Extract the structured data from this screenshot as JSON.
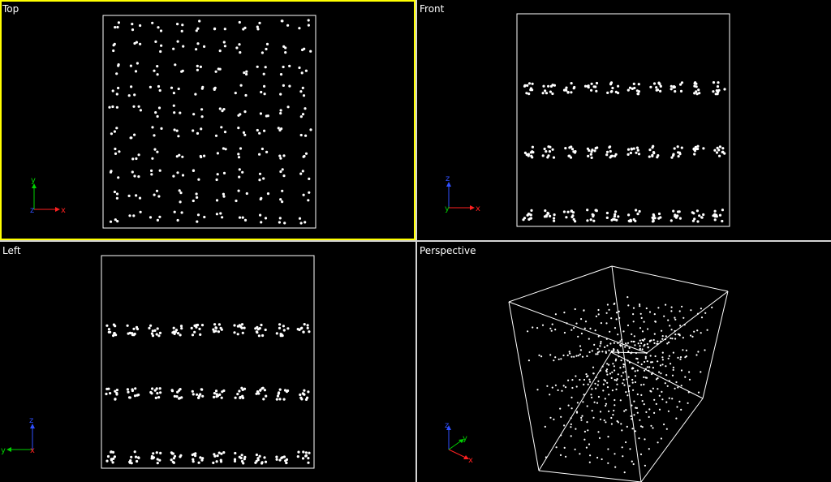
{
  "viewports": [
    {
      "key": "top",
      "label": "Top",
      "active": true,
      "triad": {
        "h": {
          "axis": "x",
          "color": "#ff2020"
        },
        "v": {
          "axis": "y",
          "color": "#00d000"
        },
        "o": {
          "axis": "z",
          "color": "#3050ff"
        }
      }
    },
    {
      "key": "front",
      "label": "Front",
      "active": false,
      "triad": {
        "h": {
          "axis": "x",
          "color": "#ff2020"
        },
        "v": {
          "axis": "z",
          "color": "#3050ff"
        },
        "o": {
          "axis": "y",
          "color": "#00d000"
        }
      }
    },
    {
      "key": "left",
      "label": "Left",
      "active": false,
      "triad": {
        "h": {
          "axis": "y",
          "color": "#00d000"
        },
        "v": {
          "axis": "z",
          "color": "#3050ff"
        },
        "o": {
          "axis": "x",
          "color": "#ff2020"
        }
      }
    },
    {
      "key": "perspective",
      "label": "Perspective",
      "active": false,
      "triad": {
        "x": {
          "axis": "x",
          "color": "#ff2020"
        },
        "y": {
          "axis": "y",
          "color": "#00d000"
        },
        "z": {
          "axis": "z",
          "color": "#3050ff"
        }
      }
    }
  ],
  "colors": {
    "background": "#000000",
    "points": "#ffffff",
    "active_border": "#ffff00",
    "separator": "#d4d4d4"
  },
  "point_cloud": {
    "grid_divisions": 10,
    "points_per_cell": 3
  }
}
